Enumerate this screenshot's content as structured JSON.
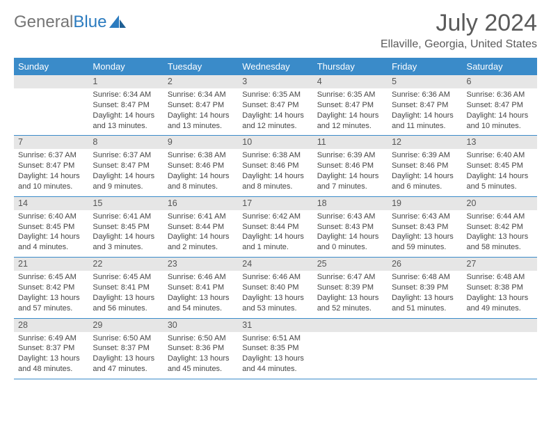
{
  "brand": {
    "part1": "General",
    "part2": "Blue"
  },
  "title": "July 2024",
  "location": "Ellaville, Georgia, United States",
  "weekdays": [
    "Sunday",
    "Monday",
    "Tuesday",
    "Wednesday",
    "Thursday",
    "Friday",
    "Saturday"
  ],
  "colors": {
    "header_bg": "#3a8bc9",
    "header_text": "#ffffff",
    "daynum_bg": "#e6e6e6",
    "text": "#444444",
    "title": "#5a5a5a"
  },
  "weeks": [
    [
      {
        "n": "",
        "sunrise": "",
        "sunset": "",
        "daylight1": "",
        "daylight2": ""
      },
      {
        "n": "1",
        "sunrise": "Sunrise: 6:34 AM",
        "sunset": "Sunset: 8:47 PM",
        "daylight1": "Daylight: 14 hours",
        "daylight2": "and 13 minutes."
      },
      {
        "n": "2",
        "sunrise": "Sunrise: 6:34 AM",
        "sunset": "Sunset: 8:47 PM",
        "daylight1": "Daylight: 14 hours",
        "daylight2": "and 13 minutes."
      },
      {
        "n": "3",
        "sunrise": "Sunrise: 6:35 AM",
        "sunset": "Sunset: 8:47 PM",
        "daylight1": "Daylight: 14 hours",
        "daylight2": "and 12 minutes."
      },
      {
        "n": "4",
        "sunrise": "Sunrise: 6:35 AM",
        "sunset": "Sunset: 8:47 PM",
        "daylight1": "Daylight: 14 hours",
        "daylight2": "and 12 minutes."
      },
      {
        "n": "5",
        "sunrise": "Sunrise: 6:36 AM",
        "sunset": "Sunset: 8:47 PM",
        "daylight1": "Daylight: 14 hours",
        "daylight2": "and 11 minutes."
      },
      {
        "n": "6",
        "sunrise": "Sunrise: 6:36 AM",
        "sunset": "Sunset: 8:47 PM",
        "daylight1": "Daylight: 14 hours",
        "daylight2": "and 10 minutes."
      }
    ],
    [
      {
        "n": "7",
        "sunrise": "Sunrise: 6:37 AM",
        "sunset": "Sunset: 8:47 PM",
        "daylight1": "Daylight: 14 hours",
        "daylight2": "and 10 minutes."
      },
      {
        "n": "8",
        "sunrise": "Sunrise: 6:37 AM",
        "sunset": "Sunset: 8:47 PM",
        "daylight1": "Daylight: 14 hours",
        "daylight2": "and 9 minutes."
      },
      {
        "n": "9",
        "sunrise": "Sunrise: 6:38 AM",
        "sunset": "Sunset: 8:46 PM",
        "daylight1": "Daylight: 14 hours",
        "daylight2": "and 8 minutes."
      },
      {
        "n": "10",
        "sunrise": "Sunrise: 6:38 AM",
        "sunset": "Sunset: 8:46 PM",
        "daylight1": "Daylight: 14 hours",
        "daylight2": "and 8 minutes."
      },
      {
        "n": "11",
        "sunrise": "Sunrise: 6:39 AM",
        "sunset": "Sunset: 8:46 PM",
        "daylight1": "Daylight: 14 hours",
        "daylight2": "and 7 minutes."
      },
      {
        "n": "12",
        "sunrise": "Sunrise: 6:39 AM",
        "sunset": "Sunset: 8:46 PM",
        "daylight1": "Daylight: 14 hours",
        "daylight2": "and 6 minutes."
      },
      {
        "n": "13",
        "sunrise": "Sunrise: 6:40 AM",
        "sunset": "Sunset: 8:45 PM",
        "daylight1": "Daylight: 14 hours",
        "daylight2": "and 5 minutes."
      }
    ],
    [
      {
        "n": "14",
        "sunrise": "Sunrise: 6:40 AM",
        "sunset": "Sunset: 8:45 PM",
        "daylight1": "Daylight: 14 hours",
        "daylight2": "and 4 minutes."
      },
      {
        "n": "15",
        "sunrise": "Sunrise: 6:41 AM",
        "sunset": "Sunset: 8:45 PM",
        "daylight1": "Daylight: 14 hours",
        "daylight2": "and 3 minutes."
      },
      {
        "n": "16",
        "sunrise": "Sunrise: 6:41 AM",
        "sunset": "Sunset: 8:44 PM",
        "daylight1": "Daylight: 14 hours",
        "daylight2": "and 2 minutes."
      },
      {
        "n": "17",
        "sunrise": "Sunrise: 6:42 AM",
        "sunset": "Sunset: 8:44 PM",
        "daylight1": "Daylight: 14 hours",
        "daylight2": "and 1 minute."
      },
      {
        "n": "18",
        "sunrise": "Sunrise: 6:43 AM",
        "sunset": "Sunset: 8:43 PM",
        "daylight1": "Daylight: 14 hours",
        "daylight2": "and 0 minutes."
      },
      {
        "n": "19",
        "sunrise": "Sunrise: 6:43 AM",
        "sunset": "Sunset: 8:43 PM",
        "daylight1": "Daylight: 13 hours",
        "daylight2": "and 59 minutes."
      },
      {
        "n": "20",
        "sunrise": "Sunrise: 6:44 AM",
        "sunset": "Sunset: 8:42 PM",
        "daylight1": "Daylight: 13 hours",
        "daylight2": "and 58 minutes."
      }
    ],
    [
      {
        "n": "21",
        "sunrise": "Sunrise: 6:45 AM",
        "sunset": "Sunset: 8:42 PM",
        "daylight1": "Daylight: 13 hours",
        "daylight2": "and 57 minutes."
      },
      {
        "n": "22",
        "sunrise": "Sunrise: 6:45 AM",
        "sunset": "Sunset: 8:41 PM",
        "daylight1": "Daylight: 13 hours",
        "daylight2": "and 56 minutes."
      },
      {
        "n": "23",
        "sunrise": "Sunrise: 6:46 AM",
        "sunset": "Sunset: 8:41 PM",
        "daylight1": "Daylight: 13 hours",
        "daylight2": "and 54 minutes."
      },
      {
        "n": "24",
        "sunrise": "Sunrise: 6:46 AM",
        "sunset": "Sunset: 8:40 PM",
        "daylight1": "Daylight: 13 hours",
        "daylight2": "and 53 minutes."
      },
      {
        "n": "25",
        "sunrise": "Sunrise: 6:47 AM",
        "sunset": "Sunset: 8:39 PM",
        "daylight1": "Daylight: 13 hours",
        "daylight2": "and 52 minutes."
      },
      {
        "n": "26",
        "sunrise": "Sunrise: 6:48 AM",
        "sunset": "Sunset: 8:39 PM",
        "daylight1": "Daylight: 13 hours",
        "daylight2": "and 51 minutes."
      },
      {
        "n": "27",
        "sunrise": "Sunrise: 6:48 AM",
        "sunset": "Sunset: 8:38 PM",
        "daylight1": "Daylight: 13 hours",
        "daylight2": "and 49 minutes."
      }
    ],
    [
      {
        "n": "28",
        "sunrise": "Sunrise: 6:49 AM",
        "sunset": "Sunset: 8:37 PM",
        "daylight1": "Daylight: 13 hours",
        "daylight2": "and 48 minutes."
      },
      {
        "n": "29",
        "sunrise": "Sunrise: 6:50 AM",
        "sunset": "Sunset: 8:37 PM",
        "daylight1": "Daylight: 13 hours",
        "daylight2": "and 47 minutes."
      },
      {
        "n": "30",
        "sunrise": "Sunrise: 6:50 AM",
        "sunset": "Sunset: 8:36 PM",
        "daylight1": "Daylight: 13 hours",
        "daylight2": "and 45 minutes."
      },
      {
        "n": "31",
        "sunrise": "Sunrise: 6:51 AM",
        "sunset": "Sunset: 8:35 PM",
        "daylight1": "Daylight: 13 hours",
        "daylight2": "and 44 minutes."
      },
      {
        "n": "",
        "sunrise": "",
        "sunset": "",
        "daylight1": "",
        "daylight2": ""
      },
      {
        "n": "",
        "sunrise": "",
        "sunset": "",
        "daylight1": "",
        "daylight2": ""
      },
      {
        "n": "",
        "sunrise": "",
        "sunset": "",
        "daylight1": "",
        "daylight2": ""
      }
    ]
  ]
}
